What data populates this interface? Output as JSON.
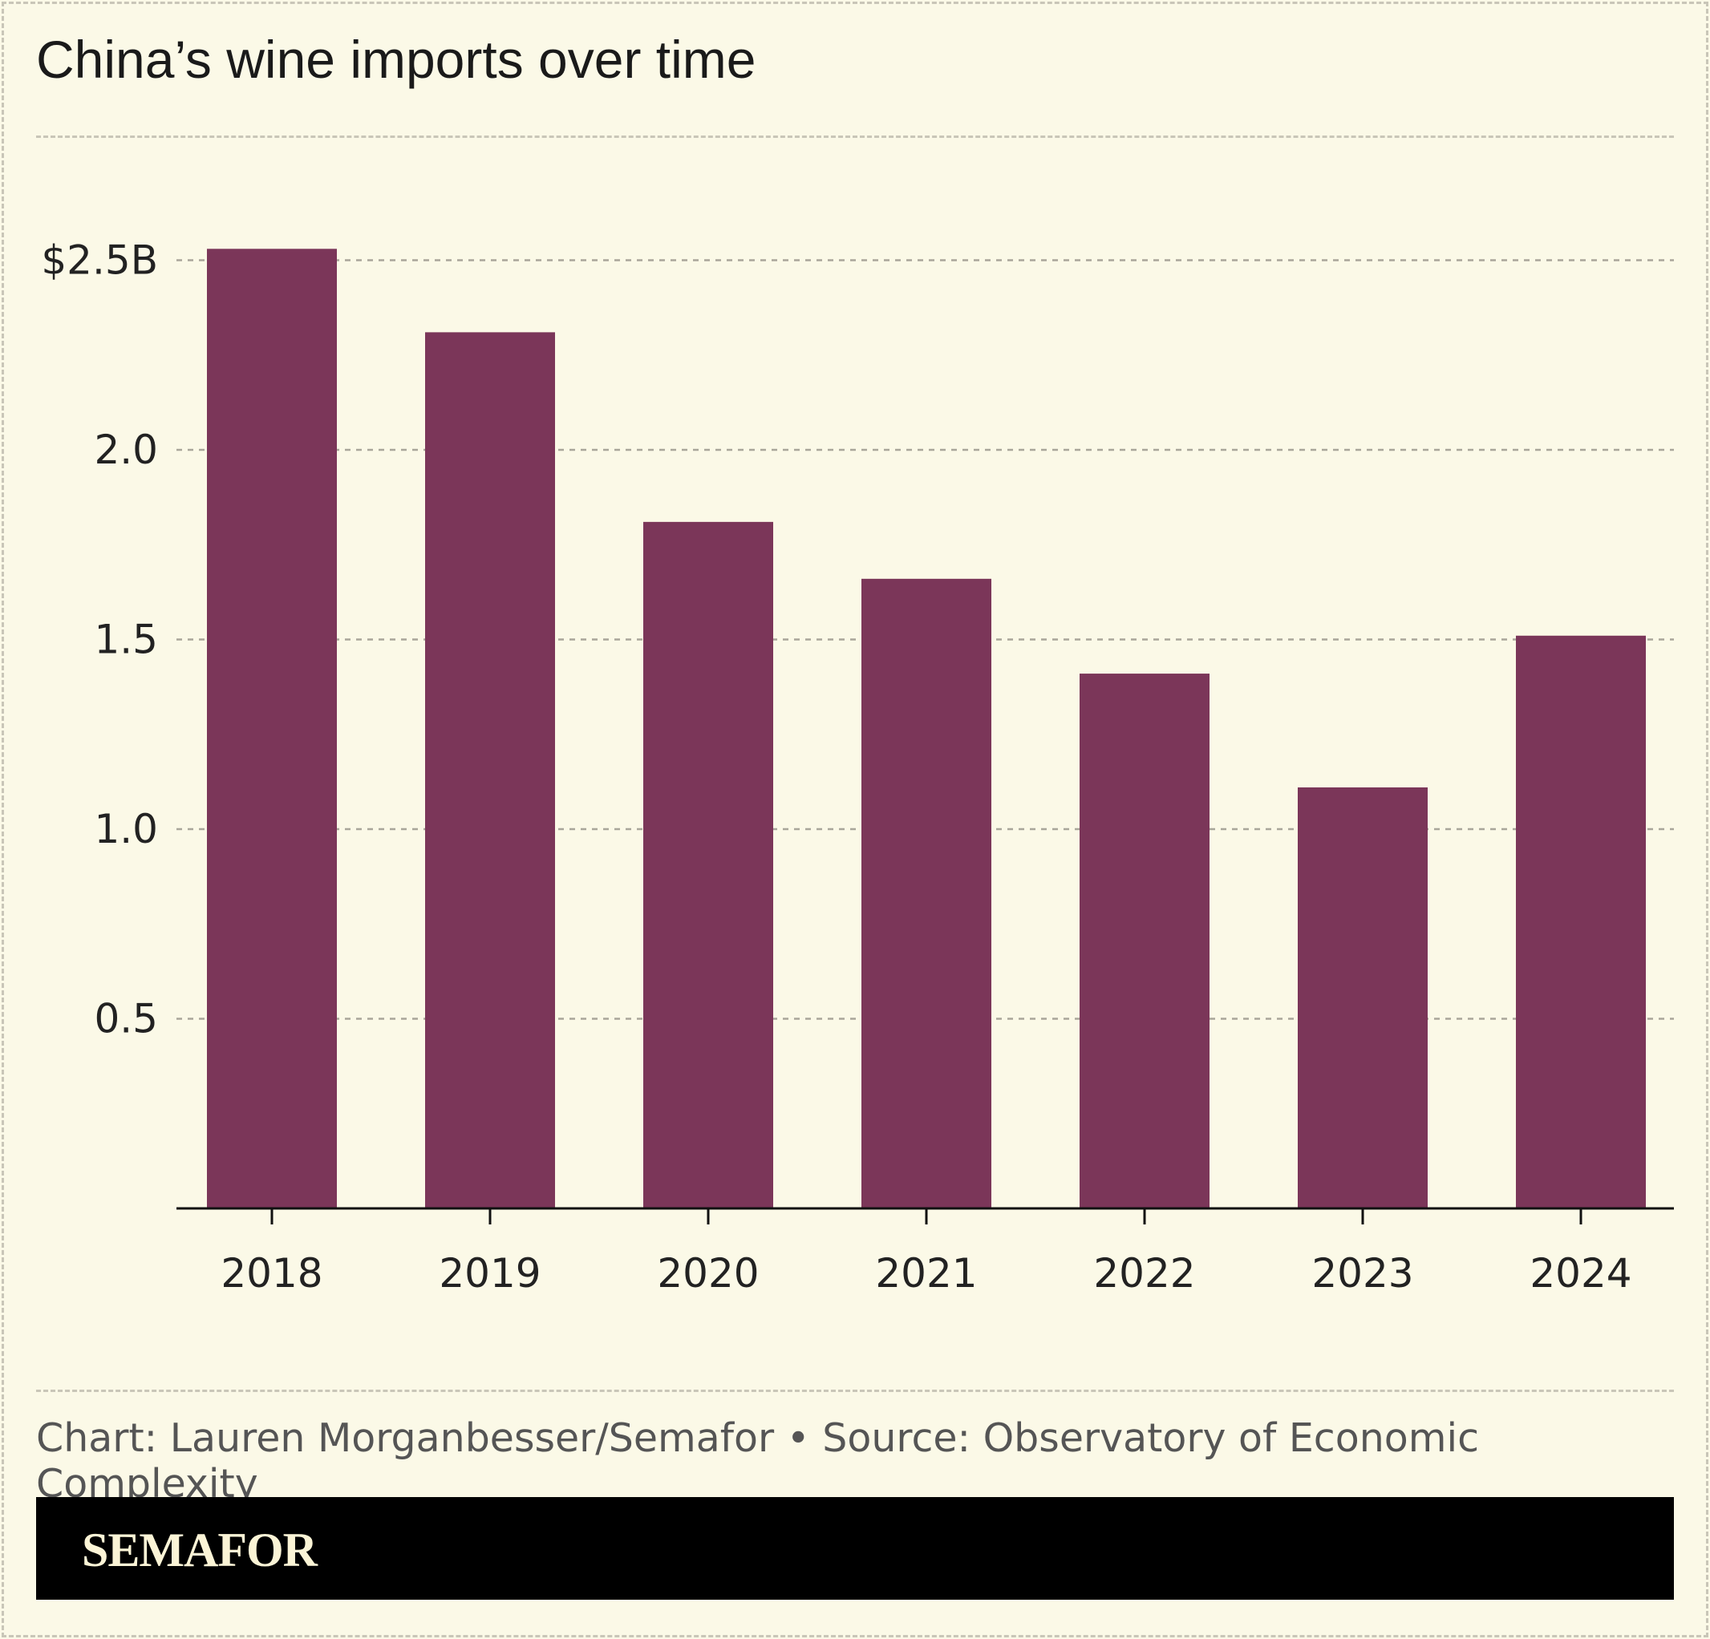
{
  "title": "China’s wine imports over time",
  "chart_data": {
    "type": "bar",
    "title": "China’s wine imports over time",
    "categories": [
      "2018",
      "2019",
      "2020",
      "2021",
      "2022",
      "2023",
      "2024"
    ],
    "values": [
      2.53,
      2.31,
      1.81,
      1.66,
      1.41,
      1.11,
      1.51
    ],
    "ylim": [
      0,
      2.5
    ],
    "yticks": [
      0.5,
      1.0,
      1.5,
      2.0,
      2.5
    ],
    "ytick_labels": [
      "0.5",
      "1.0",
      "1.5",
      "2.0",
      "$2.5B"
    ],
    "grid": true,
    "xlabel": "",
    "ylabel": "",
    "bar_color": "#7b3659"
  },
  "source": "Chart: Lauren Morganbesser/Semafor • Source: Observatory of Economic Complexity",
  "brand": "SEMAFOR",
  "colors": {
    "background": "#fbf9e7",
    "footer": "#000000",
    "bar": "#7b3659"
  }
}
